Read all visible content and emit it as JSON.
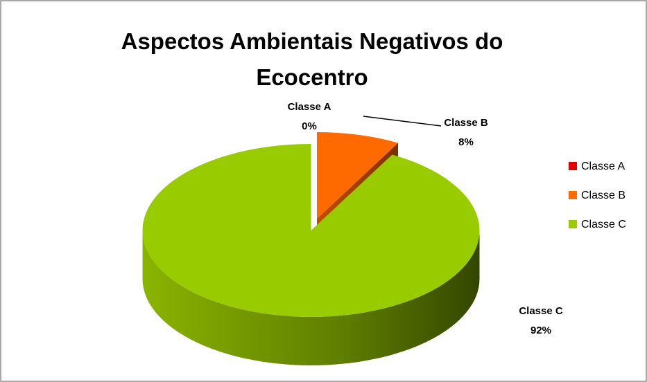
{
  "chart_data": {
    "type": "pie3d",
    "title": "Aspectos Ambientais Negativos do Ecocentro",
    "categories": [
      "Classe A",
      "Classe B",
      "Classe C"
    ],
    "values": [
      0,
      8,
      92
    ],
    "value_labels": [
      "0%",
      "8%",
      "92%"
    ],
    "colors": [
      "#e00000",
      "#ff6a00",
      "#99cc00"
    ],
    "legend": "right"
  }
}
